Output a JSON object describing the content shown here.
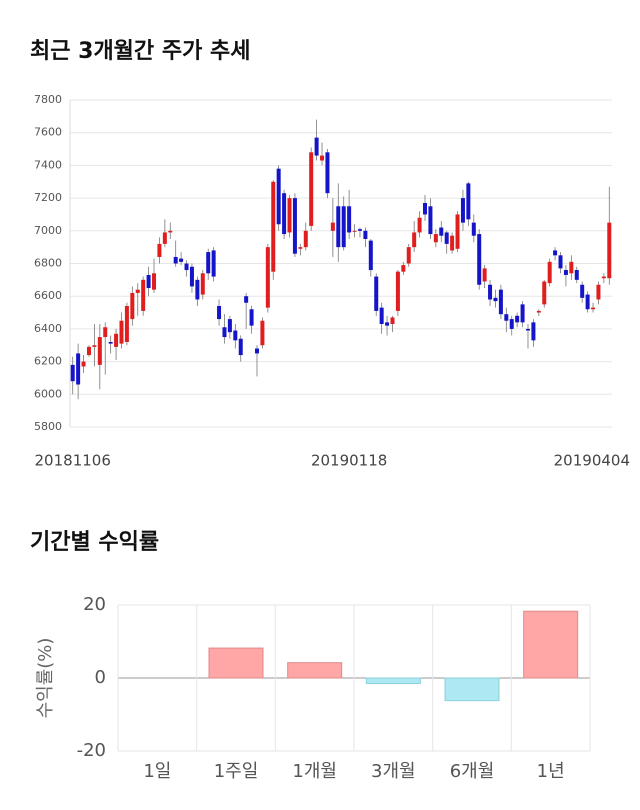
{
  "chart_data": [
    {
      "type": "candlestick",
      "title": "최근 3개월간 주가 추세",
      "categories": [
        "20181106",
        null,
        null,
        null,
        null,
        null,
        null,
        null,
        null,
        null,
        null,
        null,
        null,
        null,
        null,
        null,
        null,
        null,
        null,
        null,
        null,
        null,
        null,
        null,
        null,
        null,
        null,
        null,
        null,
        null,
        null,
        null,
        null,
        null,
        null,
        null,
        null,
        null,
        null,
        null,
        null,
        null,
        null,
        null,
        null,
        null,
        null,
        null,
        null,
        null,
        null,
        "20190118",
        null,
        null,
        null,
        null,
        null,
        null,
        null,
        null,
        null,
        null,
        null,
        null,
        null,
        null,
        null,
        null,
        null,
        null,
        null,
        null,
        null,
        null,
        null,
        null,
        null,
        null,
        null,
        null,
        null,
        null,
        null,
        null,
        null,
        null,
        null,
        null,
        null,
        null,
        null,
        null,
        null,
        null,
        null,
        null,
        null,
        null,
        null,
        "20190404"
      ],
      "open": [
        6180,
        6250,
        6170,
        6240,
        6290,
        6180,
        6350,
        6320,
        6290,
        6310,
        6320,
        6460,
        6620,
        6510,
        6730,
        6640,
        6840,
        6920,
        6990,
        6840,
        6830,
        6800,
        6780,
        6700,
        6610,
        6870,
        6880,
        6540,
        6410,
        6460,
        6390,
        6340,
        6600,
        6520,
        6280,
        6300,
        6530,
        6750,
        7380,
        7230,
        6990,
        7200,
        6890,
        6900,
        7030,
        7570,
        7430,
        7480,
        7000,
        7150,
        7150,
        7150,
        7000,
        7010,
        7000,
        6940,
        6720,
        6530,
        6440,
        6430,
        6510,
        6750,
        6800,
        6900,
        6990,
        7170,
        7150,
        6930,
        7020,
        6990,
        6880,
        6890,
        7200,
        7290,
        7050,
        6980,
        6690,
        6670,
        6590,
        6640,
        6490,
        6460,
        6480,
        6550,
        6400,
        6440,
        6500,
        6550,
        6680,
        6880,
        6850,
        6760,
        6740,
        6760,
        6670,
        6610,
        6520,
        6580,
        6710,
        6710
      ],
      "high": [
        6230,
        6310,
        6240,
        6300,
        6430,
        6430,
        6440,
        6360,
        6400,
        6500,
        6560,
        6660,
        6680,
        6720,
        6780,
        6830,
        6960,
        7070,
        7050,
        6940,
        6870,
        6820,
        6800,
        6720,
        6760,
        6890,
        6900,
        6580,
        6490,
        6480,
        6430,
        6360,
        6620,
        6540,
        6300,
        6470,
        6920,
        7310,
        7400,
        7250,
        7220,
        7230,
        6920,
        7050,
        7510,
        7680,
        7540,
        7500,
        7200,
        7290,
        7210,
        7250,
        7040,
        7020,
        7020,
        6950,
        6740,
        6560,
        6480,
        6480,
        6760,
        6810,
        6920,
        7060,
        7120,
        7220,
        7200,
        7010,
        7060,
        7000,
        6990,
        7120,
        7250,
        7300,
        7100,
        7010,
        6790,
        6700,
        6640,
        6670,
        6530,
        6480,
        6500,
        6570,
        6430,
        6460,
        6520,
        6700,
        6830,
        6900,
        6870,
        6790,
        6850,
        6780,
        6690,
        6630,
        6560,
        6690,
        6740,
        7270
      ],
      "low": [
        6000,
        5970,
        6130,
        6230,
        6170,
        6030,
        6120,
        6250,
        6210,
        6280,
        6300,
        6420,
        6480,
        6480,
        6600,
        6620,
        6800,
        6900,
        6950,
        6780,
        6790,
        6720,
        6620,
        6540,
        6580,
        6700,
        6690,
        6420,
        6310,
        6340,
        6280,
        6200,
        6400,
        6370,
        6110,
        6280,
        6500,
        6700,
        7000,
        6950,
        6960,
        6840,
        6850,
        6880,
        7000,
        7430,
        7400,
        7200,
        6840,
        6810,
        6880,
        6950,
        6960,
        6960,
        6900,
        6720,
        6480,
        6370,
        6360,
        6380,
        6480,
        6730,
        6780,
        6870,
        6960,
        7060,
        6950,
        6900,
        6930,
        6860,
        6860,
        6870,
        7000,
        7030,
        6930,
        6640,
        6650,
        6540,
        6530,
        6460,
        6380,
        6360,
        6410,
        6410,
        6280,
        6290,
        6480,
        6530,
        6660,
        6820,
        6740,
        6660,
        6700,
        6680,
        6560,
        6500,
        6500,
        6550,
        6680,
        6670
      ],
      "close": [
        6080,
        6060,
        6200,
        6290,
        6300,
        6350,
        6410,
        6310,
        6370,
        6450,
        6540,
        6620,
        6640,
        6700,
        6650,
        6740,
        6920,
        6990,
        7000,
        6800,
        6810,
        6760,
        6660,
        6580,
        6740,
        6740,
        6720,
        6460,
        6350,
        6380,
        6330,
        6240,
        6560,
        6420,
        6250,
        6450,
        6900,
        7300,
        7040,
        6980,
        7200,
        6860,
        6900,
        7000,
        7480,
        7460,
        7460,
        7230,
        7050,
        6900,
        6900,
        6990,
        7000,
        7000,
        6950,
        6760,
        6510,
        6430,
        6420,
        6470,
        6750,
        6790,
        6900,
        6990,
        7080,
        7100,
        6980,
        6980,
        6970,
        6920,
        6970,
        7100,
        7050,
        7070,
        6970,
        6670,
        6770,
        6580,
        6570,
        6490,
        6450,
        6400,
        6440,
        6440,
        6390,
        6330,
        6510,
        6690,
        6810,
        6850,
        6770,
        6730,
        6810,
        6700,
        6590,
        6520,
        6530,
        6670,
        6720,
        7050
      ],
      "up_color": "#e01e1e",
      "down_color": "#1414c8",
      "ylim": [
        5800,
        7800
      ],
      "yticks": [
        5800,
        6000,
        6200,
        6400,
        6600,
        6800,
        7000,
        7200,
        7400,
        7600,
        7800
      ],
      "grid": true
    },
    {
      "type": "bar",
      "title": "기간별 수익률",
      "ylabel": "수익률(%)",
      "categories": [
        "1일",
        "1주일",
        "1개월",
        "3개월",
        "6개월",
        "1년"
      ],
      "values": [
        0,
        8.2,
        4.2,
        -1.5,
        -6.2,
        18.3
      ],
      "positive_color": "#ffa6a6",
      "negative_color": "#aee8f2",
      "ylim": [
        -20,
        20
      ],
      "yticks": [
        -20,
        0,
        20
      ],
      "grid": true
    }
  ]
}
